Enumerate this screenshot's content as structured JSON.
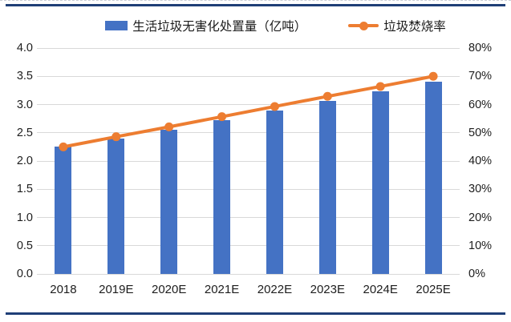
{
  "colors": {
    "bar": "#4472C4",
    "line": "#ED7D31",
    "rule": "#1f3f77",
    "gridline": "#d9d9d9",
    "text": "#1d1d1d"
  },
  "legend": {
    "bar_label": "生活垃圾无害化处置量（亿吨）",
    "line_label": "垃圾焚烧率"
  },
  "chart_data": {
    "type": "combo",
    "categories": [
      "2018",
      "2019E",
      "2020E",
      "2021E",
      "2022E",
      "2023E",
      "2024E",
      "2025E"
    ],
    "series": [
      {
        "name": "生活垃圾无害化处置量（亿吨）",
        "type": "bar",
        "axis": "left",
        "color": "#4472C4",
        "values": [
          2.25,
          2.4,
          2.56,
          2.73,
          2.9,
          3.07,
          3.24,
          3.41
        ]
      },
      {
        "name": "垃圾焚烧率",
        "type": "line",
        "axis": "right",
        "color": "#ED7D31",
        "values": [
          45.0,
          48.6,
          52.1,
          55.7,
          59.3,
          62.9,
          66.4,
          70.0
        ]
      }
    ],
    "left_axis": {
      "min": 0,
      "max": 4,
      "step": 0.5,
      "tick_labels": [
        "0.0",
        "0.5",
        "1.0",
        "1.5",
        "2.0",
        "2.5",
        "3.0",
        "3.5",
        "4.0"
      ]
    },
    "right_axis": {
      "min": 0,
      "max": 80,
      "step": 10,
      "tick_labels": [
        "0%",
        "10%",
        "20%",
        "30%",
        "40%",
        "50%",
        "60%",
        "70%",
        "80%"
      ]
    },
    "grid": true,
    "legend_position": "top",
    "title": ""
  }
}
